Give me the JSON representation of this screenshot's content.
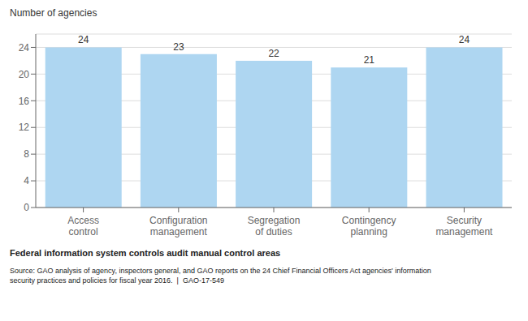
{
  "chart_data": {
    "type": "bar",
    "categories": [
      "Access\ncontrol",
      "Configuration\nmanagement",
      "Segregation\nof duties",
      "Contingency\nplanning",
      "Security\nmanagement"
    ],
    "values": [
      24,
      23,
      22,
      21,
      24
    ],
    "color": "#aed6f1",
    "ylim": [
      0,
      26
    ],
    "yticks": [
      0,
      4,
      8,
      12,
      16,
      20,
      24
    ],
    "grid": true,
    "data_labels": true,
    "ylabel": "Number of agencies",
    "xlabel": "Federal information system controls audit manual control areas",
    "annotations": [
      "Source: GAO analysis of agency, inspectors general, and GAO reports on the 24 Chief Financial Officers Act agencies' information",
      "security practices and policies for fiscal year 2016.  |  GAO-17-549"
    ]
  }
}
